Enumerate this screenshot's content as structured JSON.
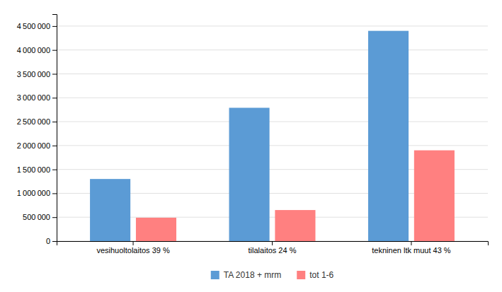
{
  "chart_data": {
    "type": "bar",
    "categories": [
      "vesihuoltolaitos 39 %",
      "tilalaitos 24 %",
      "tekninen ltk muut 43 %"
    ],
    "series": [
      {
        "name": "TA 2018 + mrm",
        "values": [
          1300000,
          2790000,
          4400000
        ],
        "color": "#5B9BD5"
      },
      {
        "name": "tot 1-6",
        "values": [
          490000,
          650000,
          1900000
        ],
        "color": "#FF8080"
      }
    ],
    "ylim": [
      0,
      4750000
    ],
    "yticks": [
      0,
      {
        "value": 500000,
        "label": "500 000"
      },
      {
        "value": 1000000,
        "label": "1 000 000"
      },
      {
        "value": 1500000,
        "label": "1 500 000"
      },
      {
        "value": 2000000,
        "label": "2 000 000"
      },
      {
        "value": 2500000,
        "label": "2 500 000"
      },
      {
        "value": 3000000,
        "label": "3 000 000"
      },
      {
        "value": 3500000,
        "label": "3 500 000"
      },
      {
        "value": 4000000,
        "label": "4 000 000"
      },
      {
        "value": 4500000,
        "label": "4 500 000"
      }
    ],
    "grid": true,
    "legend": "bottom"
  }
}
